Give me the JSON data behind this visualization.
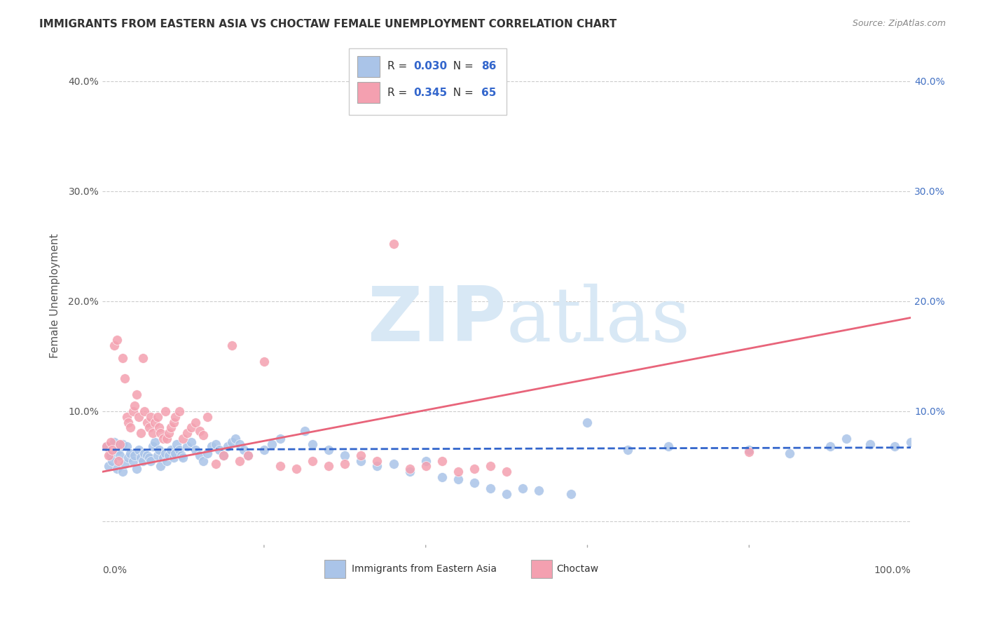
{
  "title": "IMMIGRANTS FROM EASTERN ASIA VS CHOCTAW FEMALE UNEMPLOYMENT CORRELATION CHART",
  "source": "Source: ZipAtlas.com",
  "ylabel": "Female Unemployment",
  "yticks": [
    0.0,
    0.1,
    0.2,
    0.3,
    0.4
  ],
  "ytick_labels": [
    "",
    "10.0%",
    "20.0%",
    "30.0%",
    "40.0%"
  ],
  "xlim": [
    0.0,
    1.0
  ],
  "ylim": [
    -0.02,
    0.43
  ],
  "legend_entries": [
    {
      "label": "Immigrants from Eastern Asia",
      "R": "0.030",
      "N": "86",
      "color": "#aac4e8"
    },
    {
      "label": "Choctaw",
      "R": "0.345",
      "N": "65",
      "color": "#f4a0b0"
    }
  ],
  "blue_scatter_x": [
    0.005,
    0.008,
    0.01,
    0.012,
    0.015,
    0.018,
    0.02,
    0.022,
    0.025,
    0.025,
    0.028,
    0.03,
    0.032,
    0.035,
    0.038,
    0.04,
    0.042,
    0.045,
    0.048,
    0.05,
    0.052,
    0.055,
    0.058,
    0.06,
    0.062,
    0.065,
    0.068,
    0.07,
    0.072,
    0.075,
    0.078,
    0.08,
    0.082,
    0.085,
    0.088,
    0.09,
    0.092,
    0.095,
    0.098,
    0.1,
    0.105,
    0.11,
    0.115,
    0.12,
    0.125,
    0.13,
    0.135,
    0.14,
    0.145,
    0.15,
    0.155,
    0.16,
    0.165,
    0.17,
    0.175,
    0.18,
    0.2,
    0.21,
    0.22,
    0.25,
    0.26,
    0.28,
    0.3,
    0.32,
    0.34,
    0.36,
    0.38,
    0.4,
    0.42,
    0.44,
    0.46,
    0.48,
    0.5,
    0.52,
    0.54,
    0.58,
    0.6,
    0.65,
    0.7,
    0.8,
    0.85,
    0.9,
    0.92,
    0.95,
    0.98,
    1.0
  ],
  "blue_scatter_y": [
    0.068,
    0.05,
    0.06,
    0.055,
    0.072,
    0.048,
    0.065,
    0.06,
    0.045,
    0.07,
    0.052,
    0.068,
    0.058,
    0.062,
    0.055,
    0.06,
    0.048,
    0.065,
    0.058,
    0.055,
    0.062,
    0.06,
    0.058,
    0.055,
    0.068,
    0.072,
    0.06,
    0.065,
    0.05,
    0.058,
    0.062,
    0.055,
    0.06,
    0.065,
    0.058,
    0.062,
    0.07,
    0.065,
    0.06,
    0.058,
    0.068,
    0.072,
    0.065,
    0.06,
    0.055,
    0.062,
    0.068,
    0.07,
    0.065,
    0.06,
    0.068,
    0.072,
    0.075,
    0.07,
    0.065,
    0.06,
    0.065,
    0.07,
    0.075,
    0.082,
    0.07,
    0.065,
    0.06,
    0.055,
    0.05,
    0.052,
    0.045,
    0.055,
    0.04,
    0.038,
    0.035,
    0.03,
    0.025,
    0.03,
    0.028,
    0.025,
    0.09,
    0.065,
    0.068,
    0.065,
    0.062,
    0.068,
    0.075,
    0.07,
    0.068,
    0.072
  ],
  "pink_scatter_x": [
    0.005,
    0.008,
    0.01,
    0.012,
    0.015,
    0.018,
    0.02,
    0.022,
    0.025,
    0.028,
    0.03,
    0.032,
    0.035,
    0.038,
    0.04,
    0.042,
    0.045,
    0.048,
    0.05,
    0.052,
    0.055,
    0.058,
    0.06,
    0.062,
    0.065,
    0.068,
    0.07,
    0.072,
    0.075,
    0.078,
    0.08,
    0.082,
    0.085,
    0.088,
    0.09,
    0.095,
    0.1,
    0.105,
    0.11,
    0.115,
    0.12,
    0.125,
    0.13,
    0.14,
    0.15,
    0.16,
    0.17,
    0.18,
    0.2,
    0.22,
    0.24,
    0.26,
    0.28,
    0.3,
    0.32,
    0.34,
    0.36,
    0.38,
    0.4,
    0.42,
    0.44,
    0.46,
    0.48,
    0.5,
    0.8
  ],
  "pink_scatter_y": [
    0.068,
    0.06,
    0.072,
    0.065,
    0.16,
    0.165,
    0.055,
    0.07,
    0.148,
    0.13,
    0.095,
    0.09,
    0.085,
    0.1,
    0.105,
    0.115,
    0.095,
    0.08,
    0.148,
    0.1,
    0.09,
    0.085,
    0.095,
    0.08,
    0.09,
    0.095,
    0.085,
    0.08,
    0.075,
    0.1,
    0.075,
    0.08,
    0.085,
    0.09,
    0.095,
    0.1,
    0.075,
    0.08,
    0.085,
    0.09,
    0.082,
    0.078,
    0.095,
    0.052,
    0.06,
    0.16,
    0.055,
    0.06,
    0.145,
    0.05,
    0.048,
    0.055,
    0.05,
    0.052,
    0.06,
    0.055,
    0.252,
    0.048,
    0.05,
    0.055,
    0.045,
    0.048,
    0.05,
    0.045,
    0.063
  ],
  "blue_line_x": [
    0.0,
    1.0
  ],
  "blue_line_y": [
    0.065,
    0.067
  ],
  "pink_line_x": [
    0.0,
    1.0
  ],
  "pink_line_y": [
    0.045,
    0.185
  ],
  "background_color": "#ffffff",
  "grid_color": "#cccccc",
  "title_color": "#333333",
  "axis_label_color": "#555555",
  "right_axis_color": "#4472c4",
  "watermark_color": "#d8e8f5"
}
